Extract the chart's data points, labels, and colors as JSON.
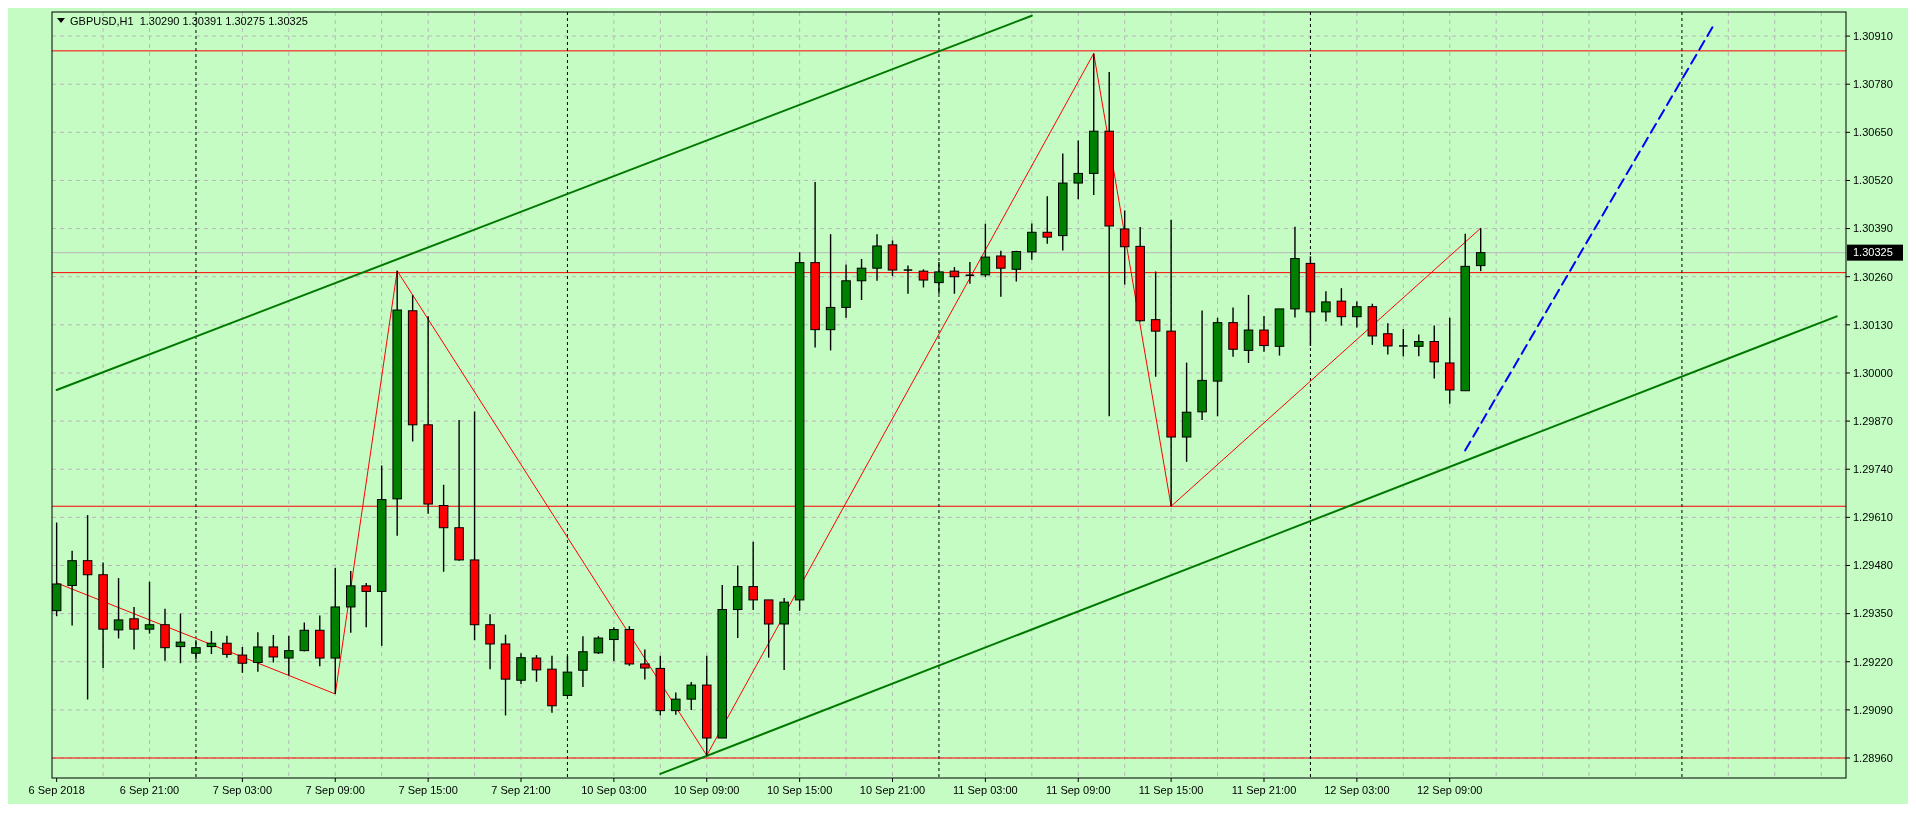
{
  "chart_data": {
    "type": "candlestick",
    "title": "GBPUSD,H1  1.30290 1.30391 1.30275 1.30325",
    "categories": [
      "6 Sep 2018",
      null,
      null,
      null,
      null,
      null,
      "6 Sep 21:00",
      null,
      null,
      null,
      null,
      null,
      "7 Sep 03:00",
      null,
      null,
      null,
      null,
      null,
      "7 Sep 09:00",
      null,
      null,
      null,
      null,
      null,
      "7 Sep 15:00",
      null,
      null,
      null,
      null,
      null,
      "7 Sep 21:00",
      null,
      null,
      null,
      null,
      null,
      "10 Sep 03:00",
      null,
      null,
      null,
      null,
      null,
      "10 Sep 09:00",
      null,
      null,
      null,
      null,
      null,
      "10 Sep 15:00",
      null,
      null,
      null,
      null,
      null,
      "10 Sep 21:00",
      null,
      null,
      null,
      null,
      null,
      "11 Sep 03:00",
      null,
      null,
      null,
      null,
      null,
      "11 Sep 09:00",
      null,
      null,
      null,
      null,
      null,
      "11 Sep 15:00",
      null,
      null,
      null,
      null,
      null,
      "11 Sep 21:00",
      null,
      null,
      null,
      null,
      null,
      "12 Sep 03:00",
      null,
      null,
      null,
      null,
      null,
      "12 Sep 09:00",
      null,
      null,
      null,
      null,
      null,
      null,
      null,
      null,
      null,
      null,
      null,
      null,
      null,
      null,
      null,
      null,
      null,
      null,
      null,
      null,
      null,
      null,
      null,
      null,
      null
    ],
    "ohlc": [
      [
        1.29358,
        1.29596,
        1.29343,
        1.2943
      ],
      [
        1.29426,
        1.2952,
        1.29318,
        1.29493
      ],
      [
        1.29493,
        1.29616,
        1.29118,
        1.29455
      ],
      [
        1.29455,
        1.29488,
        1.29203,
        1.29308
      ],
      [
        1.29306,
        1.29446,
        1.29283,
        1.29333
      ],
      [
        1.29336,
        1.29368,
        1.29253,
        1.29308
      ],
      [
        1.29308,
        1.29436,
        1.29296,
        1.2932
      ],
      [
        1.2932,
        1.29363,
        1.29223,
        1.29258
      ],
      [
        1.29261,
        1.2935,
        1.29216,
        1.29273
      ],
      [
        1.29243,
        1.29278,
        1.29226,
        1.29258
      ],
      [
        1.29261,
        1.29303,
        1.29241,
        1.2927
      ],
      [
        1.2927,
        1.2929,
        1.29231,
        1.2924
      ],
      [
        1.29238,
        1.2926,
        1.2919,
        1.29216
      ],
      [
        1.29218,
        1.293,
        1.29193,
        1.2926
      ],
      [
        1.2926,
        1.29292,
        1.29218,
        1.29233
      ],
      [
        1.2923,
        1.2929,
        1.29183,
        1.2925
      ],
      [
        1.2925,
        1.29326,
        1.29248,
        1.29305
      ],
      [
        1.29305,
        1.29345,
        1.29208,
        1.2923
      ],
      [
        1.2923,
        1.29473,
        1.29133,
        1.29368
      ],
      [
        1.29368,
        1.29465,
        1.29298,
        1.29425
      ],
      [
        1.29425,
        1.29433,
        1.29313,
        1.2941
      ],
      [
        1.2941,
        1.2975,
        1.29263,
        1.29658
      ],
      [
        1.2966,
        1.30276,
        1.2956,
        1.3017
      ],
      [
        1.30168,
        1.3021,
        1.29815,
        1.2986
      ],
      [
        1.2986,
        1.30153,
        1.2962,
        1.29646
      ],
      [
        1.29642,
        1.29698,
        1.29463,
        1.29582
      ],
      [
        1.29582,
        1.29873,
        1.29493,
        1.29495
      ],
      [
        1.29495,
        1.29896,
        1.29278,
        1.2932
      ],
      [
        1.2932,
        1.29348,
        1.292,
        1.29268
      ],
      [
        1.29268,
        1.29293,
        1.29075,
        1.29173
      ],
      [
        1.2917,
        1.29243,
        1.2916,
        1.29231
      ],
      [
        1.2923,
        1.29238,
        1.29166,
        1.29198
      ],
      [
        1.292,
        1.29236,
        1.29082,
        1.29101
      ],
      [
        1.29129,
        1.29236,
        1.29127,
        1.29192
      ],
      [
        1.29197,
        1.29289,
        1.29152,
        1.29247
      ],
      [
        1.29244,
        1.29289,
        1.29241,
        1.29284
      ],
      [
        1.2928,
        1.29313,
        1.29222,
        1.29307
      ],
      [
        1.29307,
        1.29316,
        1.29209,
        1.29214
      ],
      [
        1.29214,
        1.29253,
        1.29172,
        1.29203
      ],
      [
        1.29202,
        1.29236,
        1.29075,
        1.29088
      ],
      [
        1.29088,
        1.29137,
        1.29077,
        1.29119
      ],
      [
        1.29119,
        1.29165,
        1.2909,
        1.29157
      ],
      [
        1.29157,
        1.29236,
        1.28967,
        1.29014
      ],
      [
        1.29014,
        1.29427,
        1.29014,
        1.29361
      ],
      [
        1.29361,
        1.2948,
        1.29284,
        1.29423
      ],
      [
        1.29423,
        1.29544,
        1.2936,
        1.29387
      ],
      [
        1.29387,
        1.29387,
        1.29231,
        1.29322
      ],
      [
        1.29322,
        1.29392,
        1.29198,
        1.29381
      ],
      [
        1.29387,
        1.30326,
        1.29358,
        1.30298
      ],
      [
        1.30298,
        1.30516,
        1.30069,
        1.30117
      ],
      [
        1.30117,
        1.30375,
        1.30061,
        1.30177
      ],
      [
        1.30177,
        1.30293,
        1.30149,
        1.30249
      ],
      [
        1.30249,
        1.30308,
        1.30197,
        1.30283
      ],
      [
        1.30283,
        1.30375,
        1.30249,
        1.30343
      ],
      [
        1.30346,
        1.30358,
        1.30262,
        1.30278
      ],
      [
        1.30278,
        1.3029,
        1.30214,
        1.30278
      ],
      [
        1.30275,
        1.3028,
        1.30231,
        1.30251
      ],
      [
        1.30244,
        1.303,
        1.30214,
        1.30273
      ],
      [
        1.30275,
        1.30286,
        1.30214,
        1.3026
      ],
      [
        1.30264,
        1.303,
        1.30241,
        1.30264
      ],
      [
        1.30265,
        1.30403,
        1.30259,
        1.30313
      ],
      [
        1.30316,
        1.3033,
        1.30206,
        1.30283
      ],
      [
        1.3028,
        1.3033,
        1.30247,
        1.30328
      ],
      [
        1.30327,
        1.30404,
        1.30306,
        1.3038
      ],
      [
        1.3038,
        1.30477,
        1.30349,
        1.30367
      ],
      [
        1.30371,
        1.30593,
        1.30331,
        1.30513
      ],
      [
        1.30513,
        1.30628,
        1.30469,
        1.30539
      ],
      [
        1.30539,
        1.30863,
        1.30481,
        1.30653
      ],
      [
        1.30653,
        1.30813,
        1.29883,
        1.30397
      ],
      [
        1.30389,
        1.30439,
        1.30239,
        1.30341
      ],
      [
        1.30342,
        1.30394,
        1.30139,
        1.30141
      ],
      [
        1.30144,
        1.30274,
        1.2999,
        1.30113
      ],
      [
        1.30113,
        1.30414,
        1.2964,
        1.29827
      ],
      [
        1.29827,
        1.30028,
        1.2976,
        1.29894
      ],
      [
        1.29895,
        1.30169,
        1.29873,
        1.2998
      ],
      [
        1.29978,
        1.30149,
        1.29883,
        1.30136
      ],
      [
        1.30136,
        1.30177,
        1.30044,
        1.30064
      ],
      [
        1.30061,
        1.30211,
        1.30027,
        1.30116
      ],
      [
        1.30116,
        1.30154,
        1.30057,
        1.30074
      ],
      [
        1.30072,
        1.30173,
        1.30047,
        1.30173
      ],
      [
        1.30173,
        1.30395,
        1.3015,
        1.30309
      ],
      [
        1.30296,
        1.30315,
        1.30073,
        1.30165
      ],
      [
        1.30165,
        1.30221,
        1.30139,
        1.30192
      ],
      [
        1.30194,
        1.30229,
        1.30128,
        1.30152
      ],
      [
        1.30152,
        1.30193,
        1.30123,
        1.30179
      ],
      [
        1.30179,
        1.30187,
        1.30076,
        1.301
      ],
      [
        1.30106,
        1.30134,
        1.3005,
        1.30073
      ],
      [
        1.30073,
        1.30119,
        1.30045,
        1.30073
      ],
      [
        1.30072,
        1.30104,
        1.30045,
        1.30085
      ],
      [
        1.30085,
        1.30128,
        1.29985,
        1.3003
      ],
      [
        1.30027,
        1.30149,
        1.29917,
        1.29954
      ],
      [
        1.29952,
        1.30376,
        1.29952,
        1.30288
      ],
      [
        1.3029,
        1.30391,
        1.30275,
        1.30325
      ],
      null,
      null,
      null,
      null,
      null,
      null,
      null,
      null,
      null,
      null,
      null,
      null,
      null,
      null,
      null,
      null,
      null,
      null,
      null,
      null,
      null,
      null,
      null
    ],
    "series": [
      {
        "type": "line",
        "color": "#ff0000",
        "line_style": "solid",
        "values": [
          1.29433,
          null,
          null,
          null,
          null,
          null,
          null,
          null,
          null,
          null,
          null,
          null,
          null,
          null,
          null,
          null,
          null,
          null,
          1.29133,
          null,
          null,
          null,
          1.30276,
          null,
          null,
          null,
          null,
          null,
          null,
          null,
          null,
          null,
          null,
          null,
          null,
          null,
          null,
          null,
          null,
          null,
          null,
          null,
          1.28967,
          null,
          null,
          null,
          null,
          null,
          null,
          null,
          null,
          null,
          null,
          null,
          null,
          null,
          null,
          null,
          null,
          null,
          null,
          null,
          null,
          null,
          null,
          null,
          null,
          1.30863,
          null,
          null,
          null,
          null,
          1.2964,
          null,
          null,
          null,
          null,
          null,
          null,
          null,
          null,
          null,
          null,
          null,
          null,
          null,
          null,
          null,
          null,
          null,
          null,
          null,
          1.30391,
          null,
          null,
          null,
          null,
          null,
          null,
          null,
          null,
          null,
          null,
          null,
          null,
          null,
          null,
          null,
          null,
          null,
          null,
          null,
          null,
          null,
          null,
          null
        ]
      },
      {
        "type": "line",
        "color": "#007800",
        "line_style": "solid",
        "values": [
          1.29954,
          null,
          null,
          null,
          null,
          null,
          null,
          null,
          null,
          null,
          null,
          null,
          null,
          null,
          null,
          null,
          null,
          null,
          null,
          null,
          null,
          null,
          null,
          null,
          null,
          null,
          null,
          null,
          null,
          null,
          null,
          null,
          null,
          null,
          null,
          null,
          null,
          null,
          null,
          null,
          null,
          null,
          null,
          null,
          null,
          null,
          null,
          null,
          null,
          null,
          null,
          null,
          null,
          null,
          null,
          null,
          null,
          null,
          null,
          null,
          null,
          null,
          null,
          1.30965,
          null,
          null,
          null,
          null,
          null,
          null,
          null,
          null,
          null,
          null,
          null,
          null,
          null,
          null,
          null,
          null,
          null,
          null,
          null,
          null,
          null,
          null,
          null,
          null,
          null,
          null,
          null,
          null,
          null,
          null,
          null,
          null,
          null,
          null,
          null,
          null,
          null,
          null,
          null,
          null,
          null,
          null,
          null,
          null,
          null,
          null,
          null,
          null,
          null,
          null,
          null,
          null
        ]
      },
      {
        "type": "line",
        "color": "#007800",
        "line_style": "solid",
        "values": [
          null,
          null,
          null,
          null,
          null,
          null,
          null,
          null,
          null,
          null,
          null,
          null,
          null,
          null,
          null,
          null,
          null,
          null,
          null,
          null,
          null,
          null,
          null,
          null,
          null,
          null,
          null,
          null,
          null,
          null,
          null,
          null,
          null,
          null,
          null,
          null,
          null,
          null,
          null,
          1.28917,
          null,
          null,
          null,
          null,
          null,
          null,
          null,
          null,
          null,
          null,
          null,
          null,
          null,
          null,
          null,
          null,
          null,
          null,
          null,
          null,
          null,
          null,
          null,
          null,
          null,
          null,
          null,
          null,
          null,
          null,
          null,
          null,
          null,
          null,
          null,
          null,
          null,
          null,
          null,
          null,
          null,
          null,
          null,
          null,
          null,
          null,
          null,
          null,
          null,
          null,
          null,
          null,
          null,
          null,
          null,
          null,
          null,
          null,
          null,
          null,
          null,
          null,
          null,
          null,
          null,
          null,
          null,
          null,
          null,
          null,
          null,
          null,
          null,
          null,
          null,
          1.30153
        ]
      },
      {
        "type": "line",
        "color": "#0000ff",
        "line_style": "dashed",
        "values": [
          null,
          null,
          null,
          null,
          null,
          null,
          null,
          null,
          null,
          null,
          null,
          null,
          null,
          null,
          null,
          null,
          null,
          null,
          null,
          null,
          null,
          null,
          null,
          null,
          null,
          null,
          null,
          null,
          null,
          null,
          null,
          null,
          null,
          null,
          null,
          null,
          null,
          null,
          null,
          null,
          null,
          null,
          null,
          null,
          null,
          null,
          null,
          null,
          null,
          null,
          null,
          null,
          null,
          null,
          null,
          null,
          null,
          null,
          null,
          null,
          null,
          null,
          null,
          null,
          null,
          null,
          null,
          null,
          null,
          null,
          null,
          null,
          null,
          null,
          null,
          null,
          null,
          null,
          null,
          null,
          null,
          null,
          null,
          null,
          null,
          null,
          null,
          null,
          null,
          null,
          null,
          1.29791,
          null,
          null,
          null,
          null,
          null,
          null,
          null,
          null,
          null,
          null,
          null,
          null,
          null,
          null,
          null,
          1.30936,
          null,
          null,
          null,
          null,
          null,
          null,
          null,
          null
        ]
      }
    ],
    "ref_lines": [
      {
        "axis": "y",
        "value": 1.3087,
        "color": "#ff0000",
        "line_style": "solid"
      },
      {
        "axis": "y",
        "value": 1.30271,
        "color": "#ff0000",
        "line_style": "solid"
      },
      {
        "axis": "y",
        "value": 1.2964,
        "color": "#ff0000",
        "line_style": "solid"
      },
      {
        "axis": "y",
        "value": 1.2896,
        "color": "#ff0000",
        "line_style": "solid"
      },
      {
        "axis": "y",
        "value": 1.30325,
        "color": "#b8b8b8",
        "line_style": "solid",
        "label": "1.30325"
      }
    ],
    "ylim": [
      1.28906,
      1.30975
    ],
    "yticks": [
      {
        "value": 1.2896,
        "label": "1.28960"
      },
      {
        "value": 1.2909,
        "label": "1.29090"
      },
      {
        "value": 1.2922,
        "label": "1.29220"
      },
      {
        "value": 1.2935,
        "label": "1.29350"
      },
      {
        "value": 1.2948,
        "label": "1.29480"
      },
      {
        "value": 1.2961,
        "label": "1.29610"
      },
      {
        "value": 1.2974,
        "label": "1.29740"
      },
      {
        "value": 1.2987,
        "label": "1.29870"
      },
      {
        "value": 1.3,
        "label": "1.30000"
      },
      {
        "value": 1.3013,
        "label": "1.30130"
      },
      {
        "value": 1.3026,
        "label": "1.30260"
      },
      {
        "value": 1.3039,
        "label": "1.30390"
      },
      {
        "value": 1.3052,
        "label": "1.30520"
      },
      {
        "value": 1.3065,
        "label": "1.30650"
      },
      {
        "value": 1.3078,
        "label": "1.30780"
      },
      {
        "value": 1.3091,
        "label": "1.30910"
      }
    ],
    "grid": true
  }
}
